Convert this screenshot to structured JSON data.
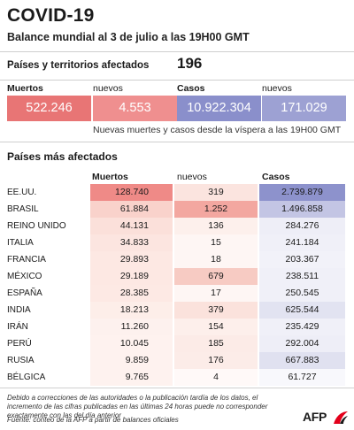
{
  "title": "COVID-19",
  "subtitle": "Balance mundial al 3 de julio a las 19H00 GMT",
  "affected": {
    "label": "Países y territorios afectados",
    "value": "196"
  },
  "summary": {
    "headers": {
      "deaths": "Muertos",
      "new_deaths": "nuevos",
      "cases": "Casos",
      "new_cases": "nuevos"
    },
    "values": {
      "deaths": "522.246",
      "new_deaths": "4.553",
      "cases": "10.922.304",
      "new_cases": "171.029"
    },
    "note": "Nuevas muertes y casos desde la víspera a las 19H00 GMT"
  },
  "countries_section": {
    "title": "Países más afectados",
    "headers": {
      "deaths": "Muertos",
      "new_deaths": "nuevos",
      "cases": "Casos"
    }
  },
  "colors": {
    "deaths_strong": "#e87575",
    "deaths_new_strong": "#ef8f8f",
    "cases_strong": "#8a8fcb",
    "cases_new_strong": "#9da1d3"
  },
  "rows": [
    {
      "country": "EE.UU.",
      "deaths": "128.740",
      "new_deaths": "319",
      "cases": "2.739.879",
      "deaths_c": "#ef8a87",
      "newd_c": "#fbe4df",
      "cases_c": "#8d92cc"
    },
    {
      "country": "BRASIL",
      "deaths": "61.884",
      "new_deaths": "1.252",
      "cases": "1.496.858",
      "deaths_c": "#f9d2cb",
      "newd_c": "#f3a7a0",
      "cases_c": "#c3c5e4"
    },
    {
      "country": "REINO UNIDO",
      "deaths": "44.131",
      "new_deaths": "136",
      "cases": "284.276",
      "deaths_c": "#fbe0da",
      "newd_c": "#fdf0ec",
      "cases_c": "#eeeef7"
    },
    {
      "country": "ITALIA",
      "deaths": "34.833",
      "new_deaths": "15",
      "cases": "241.184",
      "deaths_c": "#fce5e0",
      "newd_c": "#fef6f4",
      "cases_c": "#f0f0f8"
    },
    {
      "country": "FRANCIA",
      "deaths": "29.893",
      "new_deaths": "18",
      "cases": "203.367",
      "deaths_c": "#fde8e3",
      "newd_c": "#fef6f4",
      "cases_c": "#f2f2f9"
    },
    {
      "country": "MÉXICO",
      "deaths": "29.189",
      "new_deaths": "679",
      "cases": "238.511",
      "deaths_c": "#fde8e3",
      "newd_c": "#f7cbc3",
      "cases_c": "#f0f0f8"
    },
    {
      "country": "ESPAÑA",
      "deaths": "28.385",
      "new_deaths": "17",
      "cases": "250.545",
      "deaths_c": "#fde9e4",
      "newd_c": "#fef6f4",
      "cases_c": "#f0f0f8"
    },
    {
      "country": "INDIA",
      "deaths": "18.213",
      "new_deaths": "379",
      "cases": "625.544",
      "deaths_c": "#fdeee9",
      "newd_c": "#fbe2dc",
      "cases_c": "#e2e3f1"
    },
    {
      "country": "IRÁN",
      "deaths": "11.260",
      "new_deaths": "154",
      "cases": "235.429",
      "deaths_c": "#fdf1ee",
      "newd_c": "#fdefeb",
      "cases_c": "#f0f0f8"
    },
    {
      "country": "PERÚ",
      "deaths": "10.045",
      "new_deaths": "185",
      "cases": "292.004",
      "deaths_c": "#fef2ef",
      "newd_c": "#fcebe7",
      "cases_c": "#eeeef7"
    },
    {
      "country": "RUSIA",
      "deaths": "9.859",
      "new_deaths": "176",
      "cases": "667.883",
      "deaths_c": "#fef2ef",
      "newd_c": "#fcece8",
      "cases_c": "#e0e1f0"
    },
    {
      "country": "BÉLGICA",
      "deaths": "9.765",
      "new_deaths": "4",
      "cases": "61.727",
      "deaths_c": "#fef2ef",
      "newd_c": "#fff9f8",
      "cases_c": "#f8f8fc"
    }
  ],
  "footnote": "Debido a correcciones de las autoridades o la publicación tardía de los datos, el incremento de las cifras publicadas en las últimas 24 horas puede no corresponder exactamente con las del día anterior",
  "source": "Fuente: conteo de la AFP a partir de balances oficiales",
  "logo_text": "AFP"
}
